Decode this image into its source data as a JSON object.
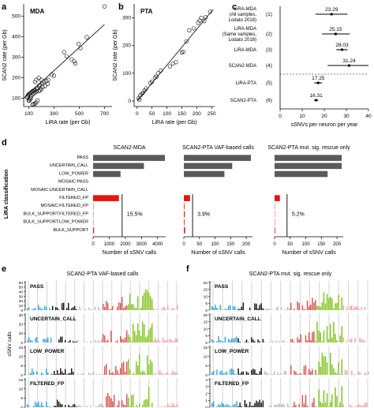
{
  "panel_labels": [
    "a",
    "b",
    "c",
    "d",
    "e",
    "f"
  ],
  "colors": {
    "gray_bar": "#5a5a5a",
    "filtered": "#e8120f",
    "cyan": "#3aa6d6",
    "black": "#111111",
    "lightgray": "#bbbbbb",
    "red": "#d9534f",
    "green": "#7fc31c",
    "pink": "#efa2a8",
    "grid": "#c8c8c8"
  },
  "chart_data": [
    {
      "id": "a",
      "type": "scatter",
      "title": "MDA",
      "xlabel": "LiRA rate (per Gb)",
      "ylabel": "SCAN2 rate (per Gb)",
      "xlim": [
        60,
        760
      ],
      "ylim": [
        60,
        560
      ],
      "xticks": [
        100,
        300,
        500,
        700
      ],
      "yticks": [
        100,
        200,
        300,
        400,
        500
      ],
      "points": [
        [
          700,
          548
        ],
        [
          495,
          365
        ],
        [
          510,
          345
        ],
        [
          560,
          398
        ],
        [
          380,
          325
        ],
        [
          400,
          305
        ],
        [
          440,
          290
        ],
        [
          460,
          280
        ],
        [
          470,
          270
        ],
        [
          280,
          215
        ],
        [
          300,
          210
        ],
        [
          255,
          190
        ],
        [
          240,
          185
        ],
        [
          220,
          180
        ],
        [
          205,
          175
        ],
        [
          190,
          165
        ],
        [
          180,
          160
        ],
        [
          170,
          150
        ],
        [
          160,
          148
        ],
        [
          150,
          140
        ],
        [
          140,
          138
        ],
        [
          130,
          135
        ],
        [
          120,
          130
        ],
        [
          110,
          125
        ],
        [
          100,
          120
        ],
        [
          95,
          115
        ],
        [
          90,
          110
        ],
        [
          85,
          105
        ],
        [
          130,
          118
        ],
        [
          140,
          125
        ],
        [
          150,
          128
        ],
        [
          160,
          133
        ],
        [
          120,
          110
        ],
        [
          115,
          100
        ],
        [
          110,
          95
        ],
        [
          105,
          90
        ],
        [
          100,
          88
        ],
        [
          170,
          90
        ],
        [
          160,
          80
        ],
        [
          150,
          75
        ],
        [
          140,
          72
        ],
        [
          130,
          70
        ],
        [
          180,
          135
        ],
        [
          190,
          140
        ],
        [
          200,
          145
        ],
        [
          210,
          155
        ],
        [
          230,
          160
        ],
        [
          250,
          170
        ],
        [
          200,
          190
        ],
        [
          180,
          200
        ],
        [
          160,
          190
        ],
        [
          150,
          180
        ]
      ],
      "fit_line": [
        [
          60,
          100
        ],
        [
          700,
          460
        ]
      ]
    },
    {
      "id": "b",
      "type": "scatter",
      "title": "PTA",
      "xlabel": "LiRA rate (per Gb)",
      "ylabel": "SCAN2 rate (per Gb)",
      "xlim": [
        -10,
        260
      ],
      "ylim": [
        -20,
        350
      ],
      "xticks": [
        0,
        50,
        100,
        150,
        200,
        250
      ],
      "yticks": [
        0,
        100,
        200,
        300
      ],
      "points": [
        [
          245,
          322
        ],
        [
          230,
          302
        ],
        [
          215,
          300
        ],
        [
          210,
          290
        ],
        [
          225,
          288
        ],
        [
          205,
          282
        ],
        [
          190,
          262
        ],
        [
          175,
          255
        ],
        [
          165,
          215
        ],
        [
          150,
          175
        ],
        [
          155,
          178
        ],
        [
          130,
          140
        ],
        [
          120,
          135
        ],
        [
          110,
          125
        ],
        [
          80,
          110
        ],
        [
          70,
          100
        ],
        [
          65,
          88
        ],
        [
          60,
          85
        ],
        [
          50,
          70
        ],
        [
          45,
          65
        ],
        [
          30,
          45
        ],
        [
          25,
          38
        ],
        [
          10,
          20
        ],
        [
          5,
          10
        ],
        [
          8,
          5
        ],
        [
          15,
          25
        ],
        [
          20,
          30
        ]
      ],
      "fit_line": [
        [
          0,
          0
        ],
        [
          255,
          330
        ]
      ]
    },
    {
      "id": "c",
      "type": "forest",
      "xlabel": "sSNVs per neuron per year",
      "xlim": [
        0,
        40
      ],
      "xticks": [
        0,
        10,
        20,
        30,
        40
      ],
      "rows": [
        {
          "label": "LiRA-MDA\n(All samples,\nLodato 2018)",
          "index": "(1)",
          "value": 23.29,
          "lo": 16,
          "hi": 30.5,
          "value_label": "23.29"
        },
        {
          "label": "LiRA-MDA\n(Same samples,\nLodato 2018)",
          "index": "(2)",
          "value": 25.15,
          "lo": 19,
          "hi": 31.5,
          "value_label": "25.15"
        },
        {
          "label": "LiRA-MDA",
          "index": "(3)",
          "value": 28.03,
          "lo": 25.5,
          "hi": 30.5,
          "value_label": "28.03"
        },
        {
          "label": "SCAN2-MDA",
          "index": "(4)",
          "value": 31.24,
          "lo": 21.5,
          "hi": 40,
          "value_label": "31.24"
        },
        {
          "label": "LiRA-PTA",
          "index": "(5)",
          "value": 17.25,
          "lo": 15.5,
          "hi": 19,
          "value_label": "17.25"
        },
        {
          "label": "SCAN2-PTA",
          "index": "(6)",
          "value": 16.31,
          "lo": 15.3,
          "hi": 17.3,
          "value_label": "16.31"
        }
      ]
    },
    {
      "id": "d",
      "type": "bar",
      "ylabel": "LiRA classification",
      "xlabel": "Number of sSNV calls",
      "categories": [
        "PASS",
        "UNCERTAIN_CALL",
        "LOW_POWER",
        "MOSAIC:PASS",
        "MOSAIC:UNCERTAIN_CALL",
        "FILTERED_FP",
        "MOSAIC:FILTERED_FP",
        "BULK_SUPPORT:FILTERED_FP",
        "BULK_SUPPORT:LOW_POWER",
        "BULK_SUPPORT"
      ],
      "panels": [
        {
          "title": "SCAN2-MDA",
          "xlim": [
            0,
            4500
          ],
          "xticks": [
            0,
            1000,
            2000,
            3000,
            4000
          ],
          "values": [
            4450,
            3150,
            1700,
            0,
            0,
            1600,
            20,
            20,
            20,
            60
          ],
          "percent": "15.5%",
          "vline": 1800
        },
        {
          "title": "SCAN2-PTA VAF-based calls",
          "xlim": [
            0,
            220
          ],
          "xticks": [
            0,
            50,
            100,
            150,
            200
          ],
          "values": [
            215,
            155,
            130,
            0,
            0,
            20,
            2,
            3,
            2,
            4
          ],
          "percent": "3.9%",
          "vline": 28
        },
        {
          "title": "SCAN2-PTA mut. sig. rescue only",
          "xlim": [
            0,
            220
          ],
          "xticks": [
            0,
            50,
            100,
            150,
            200
          ],
          "values": [
            215,
            215,
            170,
            0,
            0,
            17,
            1,
            1,
            1,
            2
          ],
          "percent": "5.2%",
          "vline": 40
        }
      ]
    },
    {
      "id": "e",
      "type": "bar",
      "title": "SCAN2-PTA VAF-based calls",
      "ylabel": "sSNV calls",
      "groups": [
        "PASS",
        "UNCERTAIN_CALL",
        "LOW_POWER",
        "FILTERED_FP"
      ],
      "group_ymax": [
        60,
        30,
        15,
        15
      ],
      "yticks": [
        [
          0,
          10,
          20,
          30,
          40,
          50,
          60
        ],
        [
          0,
          10,
          20,
          30
        ],
        [
          0,
          5,
          10,
          15
        ],
        [
          0,
          5,
          10,
          15
        ]
      ]
    },
    {
      "id": "f",
      "type": "bar",
      "title": "SCAN2-PTA mut. sig. rescue only",
      "groups": [
        "PASS",
        "UNCERTAIN_CALL",
        "LOW_POWER",
        "FILTERED_FP"
      ],
      "group_ymax": [
        20,
        20,
        15,
        4
      ],
      "yticks": [
        [
          0,
          5,
          10,
          15,
          20
        ],
        [
          0,
          5,
          10,
          15,
          20
        ],
        [
          0,
          5,
          10,
          15
        ],
        [
          0,
          1,
          2,
          3,
          4
        ]
      ]
    }
  ]
}
